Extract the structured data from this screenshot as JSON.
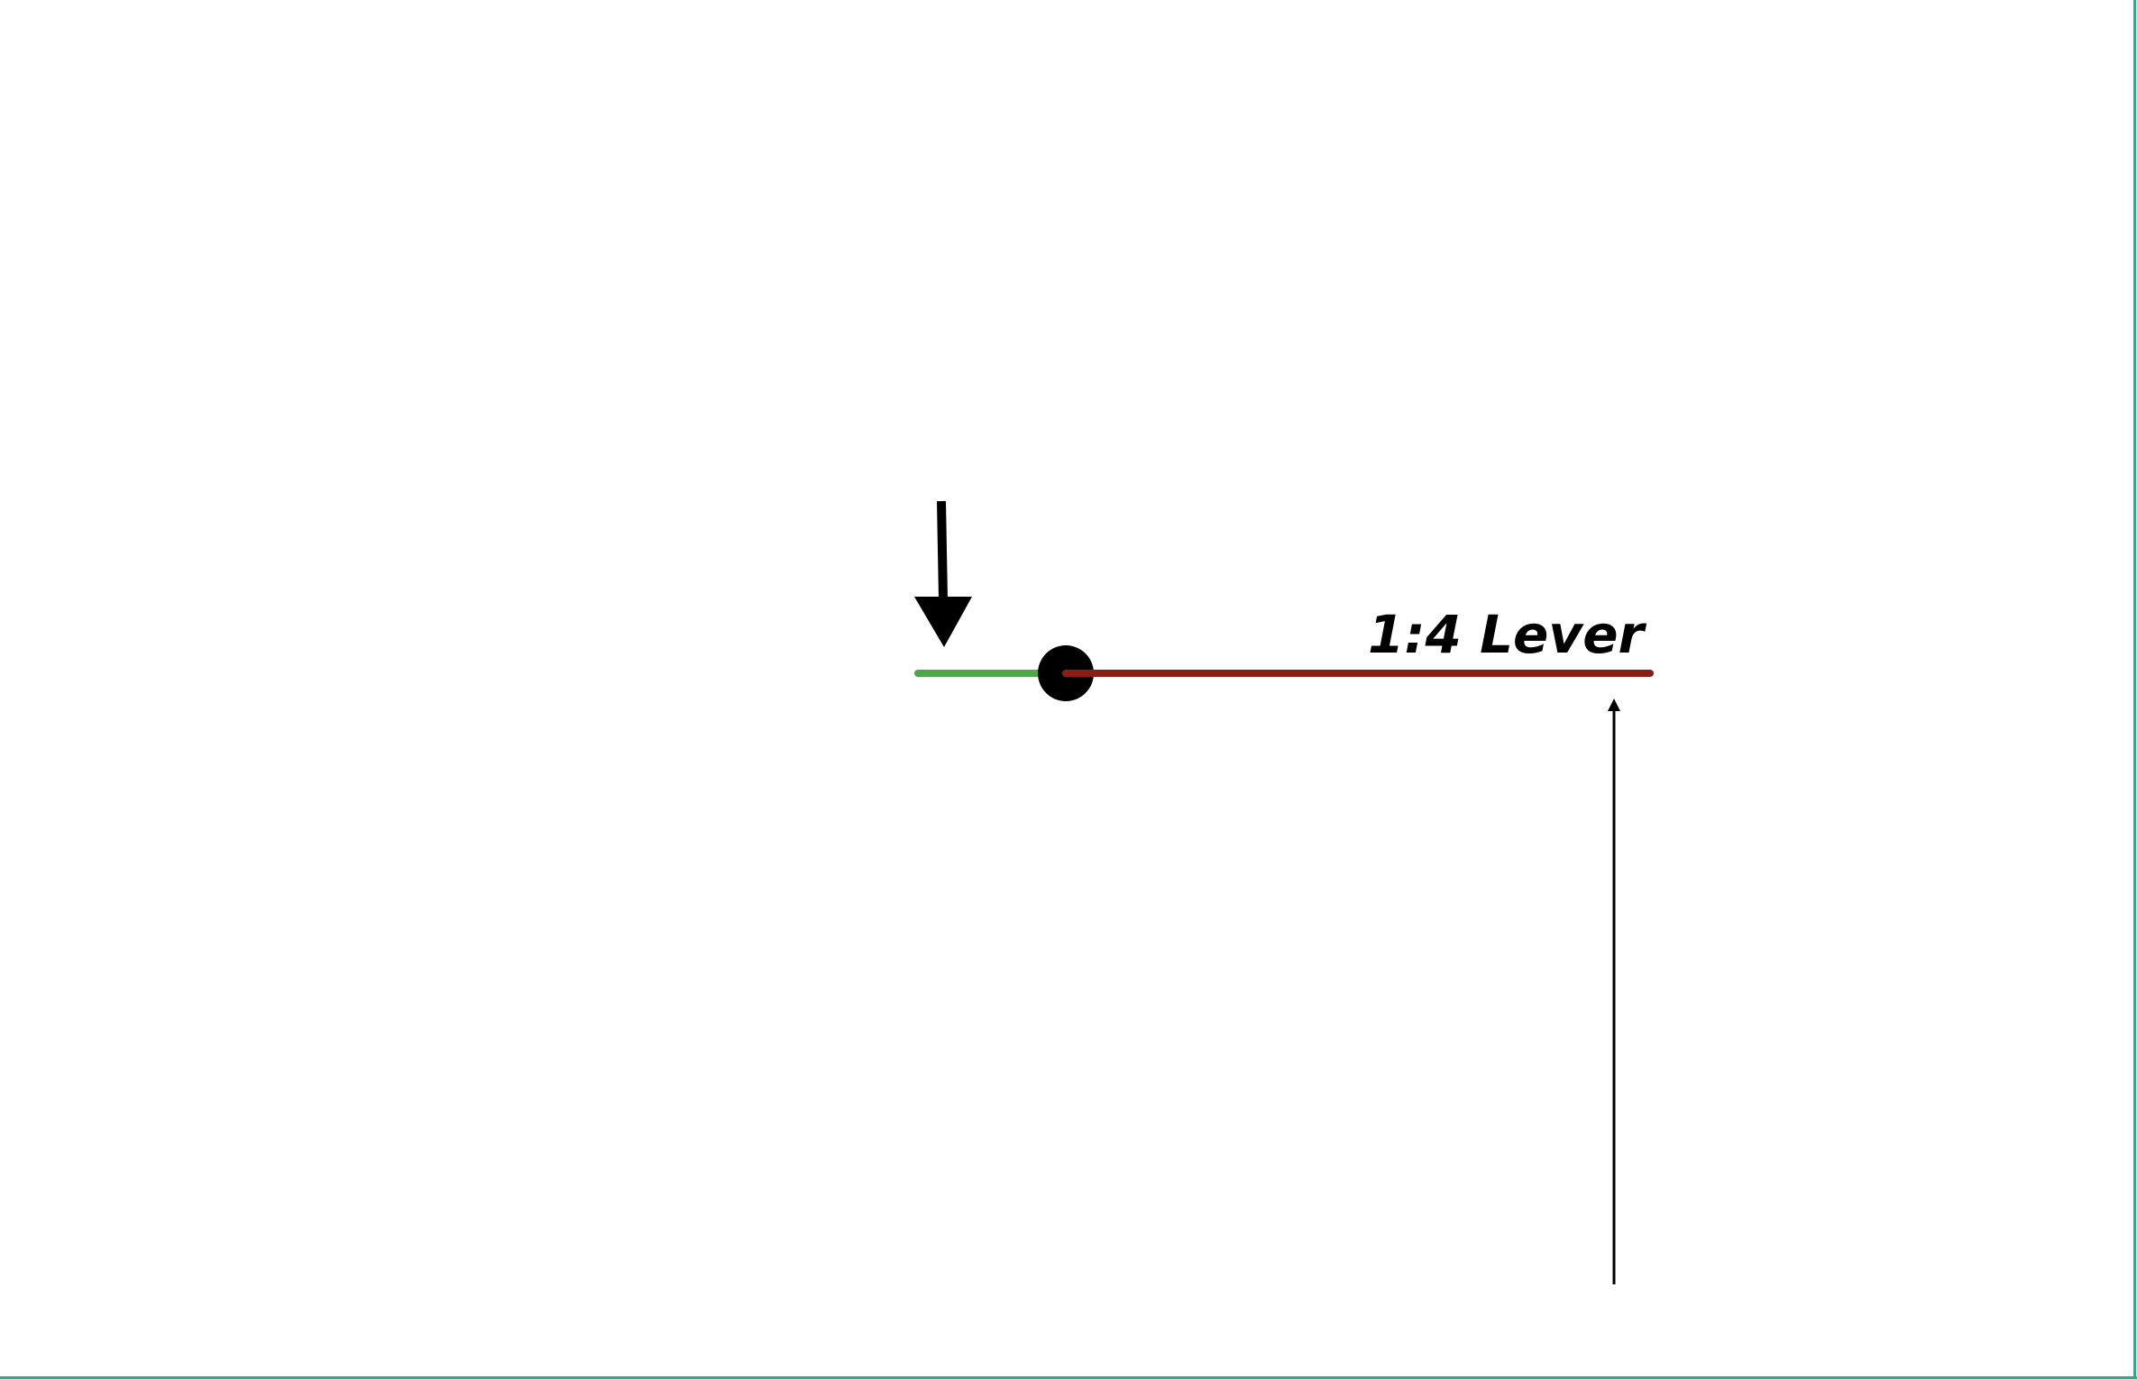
{
  "diagram": {
    "title": "1:4 Lever",
    "ratio": {
      "effort_arm": 1,
      "load_arm": 4
    },
    "colors": {
      "effort_arm": "#4ea84a",
      "load_arm": "#8b1d17",
      "fulcrum": "#000000",
      "arrows": "#000000",
      "frame": "#3aa58a"
    }
  }
}
